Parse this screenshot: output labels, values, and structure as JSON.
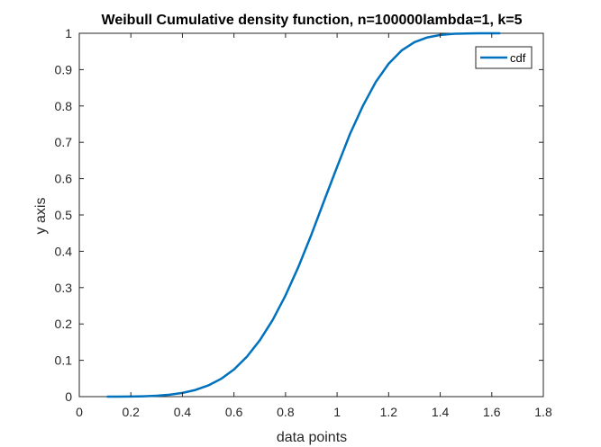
{
  "chart_data": {
    "type": "line",
    "title": "Weibull Cumulative density function, n=100000lambda=1, k=5",
    "xlabel": "data points",
    "ylabel": "y axis",
    "xlim": [
      0,
      1.8
    ],
    "ylim": [
      0,
      1
    ],
    "xticks": [
      "0",
      "0.2",
      "0.4",
      "0.6",
      "0.8",
      "1",
      "1.2",
      "1.4",
      "1.6",
      "1.8"
    ],
    "yticks": [
      "0",
      "0.1",
      "0.2",
      "0.3",
      "0.4",
      "0.5",
      "0.6",
      "0.7",
      "0.8",
      "0.9",
      "1"
    ],
    "grid": false,
    "legend_position": "top-right",
    "series": [
      {
        "name": "cdf",
        "color": "#0072BD",
        "x": [
          0.11,
          0.15,
          0.2,
          0.25,
          0.3,
          0.35,
          0.4,
          0.45,
          0.5,
          0.55,
          0.6,
          0.65,
          0.7,
          0.75,
          0.8,
          0.85,
          0.9,
          0.95,
          1.0,
          1.05,
          1.1,
          1.15,
          1.2,
          1.25,
          1.3,
          1.35,
          1.4,
          1.45,
          1.5,
          1.55,
          1.6,
          1.63
        ],
        "y": [
          0.0,
          0.0001,
          0.0003,
          0.001,
          0.0024,
          0.0052,
          0.0102,
          0.0183,
          0.0308,
          0.0491,
          0.0748,
          0.1098,
          0.1549,
          0.2108,
          0.2788,
          0.3573,
          0.4453,
          0.5396,
          0.6321,
          0.7227,
          0.8001,
          0.8658,
          0.916,
          0.9524,
          0.9754,
          0.9885,
          0.9954,
          0.9984,
          0.9995,
          0.9999,
          1.0,
          1.0
        ]
      }
    ]
  }
}
